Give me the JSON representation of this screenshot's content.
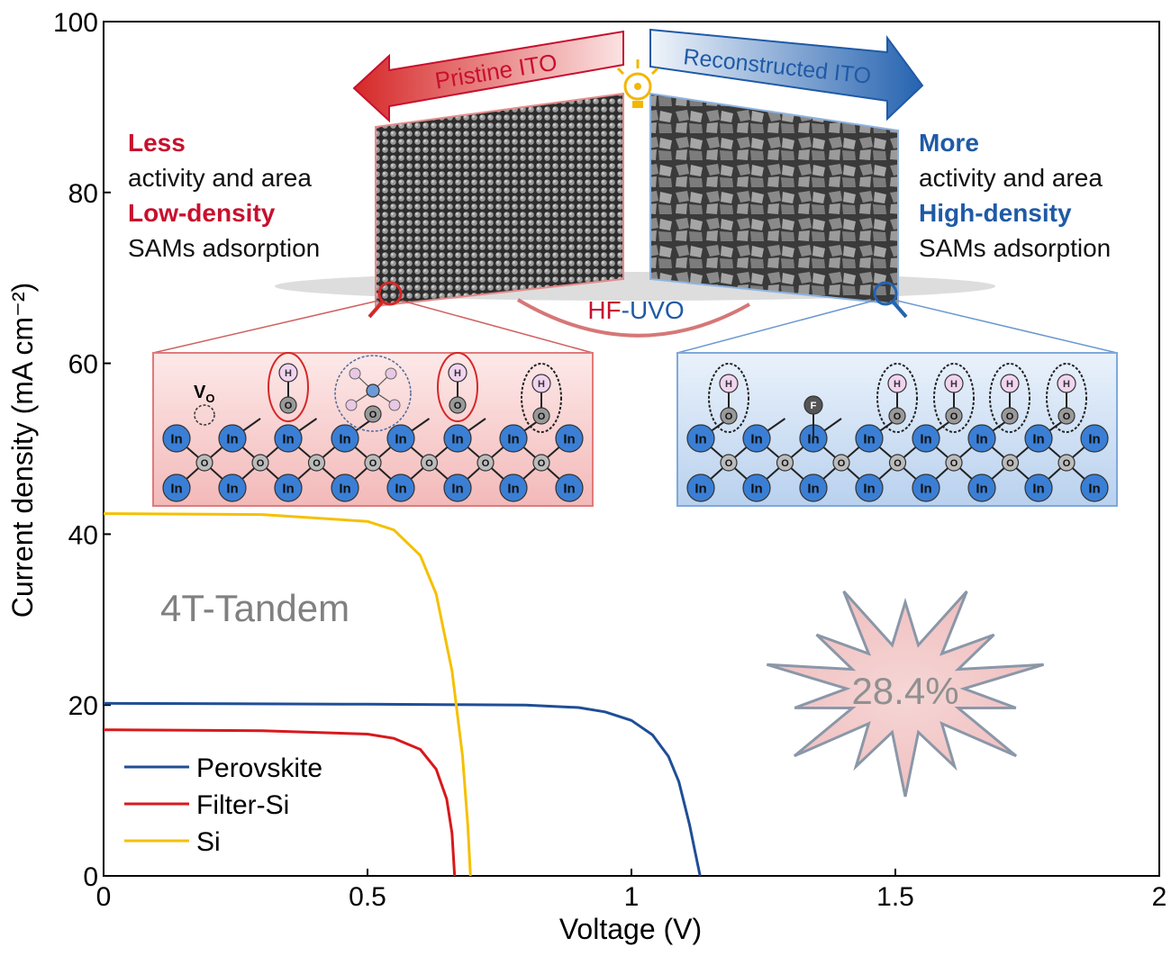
{
  "chart_data": {
    "type": "line",
    "xlabel": "Voltage (V)",
    "ylabel": "Current density (mA cm⁻²)",
    "xlim": [
      0,
      2
    ],
    "ylim": [
      0,
      100
    ],
    "xticks": [
      "0",
      "0.5",
      "1",
      "1.5",
      "2"
    ],
    "xtick_values": [
      0,
      0.5,
      1,
      1.5,
      2
    ],
    "yticks": [
      "0",
      "20",
      "40",
      "60",
      "80",
      "100"
    ],
    "ytick_values": [
      0,
      20,
      40,
      60,
      80,
      100
    ],
    "grid": false,
    "legend_position": "bottom-left",
    "series": [
      {
        "name": "Perovskite",
        "color": "#1f4e96",
        "x": [
          0,
          0.5,
          0.8,
          0.9,
          0.95,
          1.0,
          1.04,
          1.07,
          1.09,
          1.11,
          1.12,
          1.13
        ],
        "y": [
          20.2,
          20.1,
          20.0,
          19.7,
          19.2,
          18.2,
          16.5,
          14.0,
          11.0,
          6.0,
          3.0,
          0
        ]
      },
      {
        "name": "Filter-Si",
        "color": "#d7191c",
        "x": [
          0,
          0.3,
          0.5,
          0.55,
          0.6,
          0.63,
          0.65,
          0.66,
          0.665
        ],
        "y": [
          17.1,
          17.0,
          16.6,
          16.1,
          14.8,
          12.5,
          9.0,
          5.0,
          0
        ]
      },
      {
        "name": "Si",
        "color": "#f5c000",
        "x": [
          0,
          0.3,
          0.5,
          0.55,
          0.6,
          0.63,
          0.66,
          0.68,
          0.69,
          0.695
        ],
        "y": [
          42.4,
          42.3,
          41.5,
          40.5,
          37.5,
          33.0,
          24.0,
          14.0,
          6.0,
          0
        ]
      }
    ],
    "annotations": {
      "device": "4T-Tandem",
      "efficiency": "28.4%"
    }
  },
  "inset": {
    "left_arrow": "Pristine ITO",
    "right_arrow": "Reconstructed ITO",
    "process": {
      "part1": "HF",
      "sep": "-",
      "part2": "UVO"
    },
    "left_text": {
      "l1": "Less",
      "l2": "activity and area",
      "l3": "Low-density",
      "l4": "SAMs adsorption"
    },
    "right_text": {
      "l1": "More",
      "l2": "activity and area",
      "l3": "High-density",
      "l4": "SAMs adsorption"
    },
    "atoms": {
      "indium": "In",
      "oxygen": "O",
      "hydrogen": "H",
      "fluorine": "F",
      "vacancy": "V",
      "vacancy_sub": "O"
    },
    "colors": {
      "red": "#c8102e",
      "blue": "#1f5aa6",
      "indium": "#3a7fd5"
    }
  }
}
